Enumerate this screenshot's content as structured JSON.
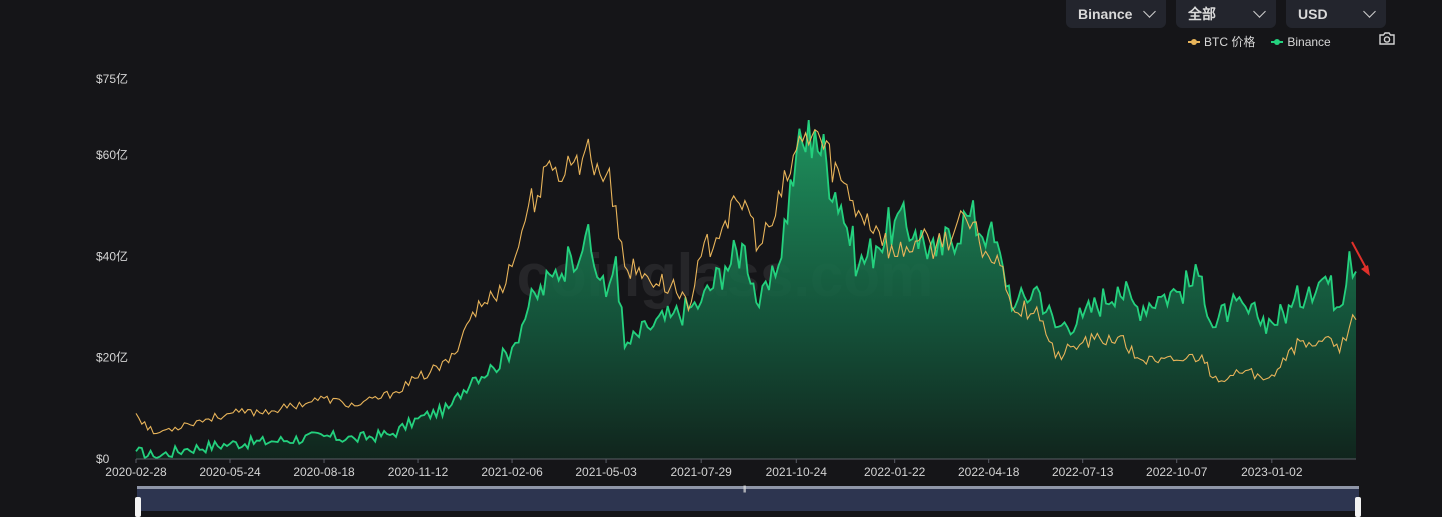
{
  "controls": {
    "exchange": "Binance",
    "range": "全部",
    "currency": "USD"
  },
  "legend": [
    {
      "label": "BTC 价格",
      "color": "#e8b45a"
    },
    {
      "label": "Binance",
      "color": "#24d17e"
    }
  ],
  "watermark": "coinglass.com",
  "icons": {
    "camera": "camera-icon",
    "dropdown": "chevron-down-icon",
    "annotation": "red-arrow"
  },
  "chart_data": {
    "type": "area",
    "y_unit": "USD (亿 = 100 million)",
    "yticks": [
      "$0",
      "$20亿",
      "$40亿",
      "$60亿",
      "$75亿"
    ],
    "ytick_values": [
      0,
      20,
      40,
      60,
      75
    ],
    "ylim": [
      0,
      75
    ],
    "xticks": [
      "2020-02-28",
      "2020-05-24",
      "2020-08-18",
      "2020-11-12",
      "2021-02-06",
      "2021-05-03",
      "2021-07-29",
      "2021-10-24",
      "2022-01-22",
      "2022-04-18",
      "2022-07-13",
      "2022-10-07",
      "2023-01-02"
    ],
    "x_range": [
      "2020-02-28",
      "2023-03-20"
    ],
    "series": [
      {
        "name": "Binance",
        "color": "#24d17e",
        "x": [
          "2020-02-28",
          "2020-03-15",
          "2020-04-15",
          "2020-05-24",
          "2020-07-01",
          "2020-08-18",
          "2020-09-15",
          "2020-10-20",
          "2020-11-12",
          "2020-12-10",
          "2021-01-01",
          "2021-01-20",
          "2021-02-06",
          "2021-02-21",
          "2021-03-15",
          "2021-04-01",
          "2021-04-14",
          "2021-05-03",
          "2021-05-12",
          "2021-05-20",
          "2021-06-10",
          "2021-07-01",
          "2021-07-20",
          "2021-07-29",
          "2021-08-20",
          "2021-09-07",
          "2021-09-20",
          "2021-10-05",
          "2021-10-24",
          "2021-11-10",
          "2021-12-04",
          "2021-12-20",
          "2022-01-05",
          "2022-01-22",
          "2022-02-10",
          "2022-03-01",
          "2022-03-29",
          "2022-04-18",
          "2022-05-01",
          "2022-05-12",
          "2022-06-01",
          "2022-06-18",
          "2022-07-13",
          "2022-08-14",
          "2022-09-01",
          "2022-09-20",
          "2022-10-07",
          "2022-10-30",
          "2022-11-09",
          "2022-11-25",
          "2022-12-20",
          "2023-01-02",
          "2023-01-20",
          "2023-02-05",
          "2023-02-20",
          "2023-03-05",
          "2023-03-14",
          "2023-03-20"
        ],
        "y": [
          1.5,
          0.5,
          2.0,
          3.0,
          3.5,
          4.5,
          4.0,
          5.0,
          8.0,
          10.0,
          16.0,
          18.0,
          22.0,
          30.0,
          36.0,
          40.0,
          44.0,
          32.0,
          40.0,
          22.0,
          26.0,
          28.0,
          30.0,
          31.0,
          38.0,
          42.0,
          30.0,
          36.0,
          60.0,
          65.0,
          50.0,
          38.0,
          42.0,
          47.0,
          45.0,
          40.0,
          48.0,
          45.0,
          38.0,
          30.0,
          34.0,
          26.0,
          28.0,
          34.0,
          30.0,
          32.0,
          33.0,
          36.0,
          26.0,
          30.0,
          28.0,
          27.0,
          30.0,
          34.0,
          36.0,
          30.0,
          41.0,
          37.0
        ]
      },
      {
        "name": "BTC 价格",
        "color": "#e8b45a",
        "x": [
          "2020-02-28",
          "2020-03-15",
          "2020-04-15",
          "2020-05-24",
          "2020-07-01",
          "2020-08-18",
          "2020-09-15",
          "2020-10-20",
          "2020-11-12",
          "2020-12-10",
          "2021-01-01",
          "2021-01-20",
          "2021-02-06",
          "2021-02-21",
          "2021-03-15",
          "2021-04-01",
          "2021-04-14",
          "2021-05-03",
          "2021-05-12",
          "2021-05-20",
          "2021-06-10",
          "2021-07-01",
          "2021-07-20",
          "2021-07-29",
          "2021-08-20",
          "2021-09-07",
          "2021-09-20",
          "2021-10-05",
          "2021-10-24",
          "2021-11-10",
          "2021-12-04",
          "2021-12-20",
          "2022-01-05",
          "2022-01-22",
          "2022-02-10",
          "2022-03-01",
          "2022-03-29",
          "2022-04-18",
          "2022-05-01",
          "2022-05-12",
          "2022-06-01",
          "2022-06-18",
          "2022-07-13",
          "2022-08-14",
          "2022-09-01",
          "2022-09-20",
          "2022-10-07",
          "2022-10-30",
          "2022-11-09",
          "2022-11-25",
          "2022-12-20",
          "2023-01-02",
          "2023-01-20",
          "2023-02-05",
          "2023-02-20",
          "2023-03-05",
          "2023-03-14",
          "2023-03-20"
        ],
        "y": [
          9.0,
          5.0,
          7.0,
          9.0,
          9.5,
          12.0,
          10.5,
          13.0,
          16.0,
          19.0,
          29.0,
          32.0,
          38.0,
          50.0,
          57.0,
          58.0,
          61.0,
          56.0,
          50.0,
          38.0,
          36.0,
          34.0,
          31.0,
          40.0,
          47.0,
          51.0,
          42.0,
          48.0,
          61.0,
          65.0,
          55.0,
          49.0,
          46.0,
          40.0,
          43.0,
          42.0,
          47.0,
          40.0,
          38.0,
          29.0,
          30.0,
          20.0,
          23.0,
          24.0,
          20.0,
          19.0,
          19.5,
          20.5,
          16.0,
          16.5,
          16.8,
          16.6,
          22.0,
          23.0,
          24.0,
          21.0,
          26.0,
          27.5
        ]
      }
    ]
  }
}
